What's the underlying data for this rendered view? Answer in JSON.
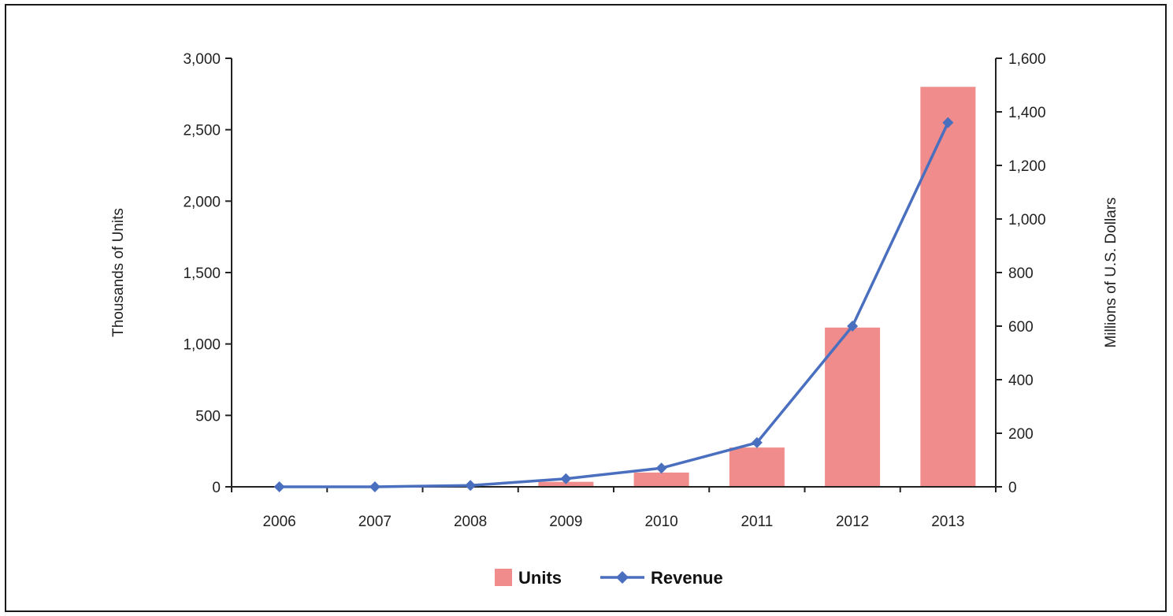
{
  "chart_data": {
    "type": "bar",
    "categories": [
      "2006",
      "2007",
      "2008",
      "2009",
      "2010",
      "2011",
      "2012",
      "2013"
    ],
    "series": [
      {
        "name": "Units",
        "type": "bar",
        "axis": "left",
        "values": [
          0,
          0,
          5,
          35,
          100,
          275,
          1115,
          2800
        ]
      },
      {
        "name": "Revenue",
        "type": "line",
        "axis": "right",
        "values": [
          0,
          0,
          5,
          30,
          70,
          165,
          600,
          1360
        ]
      }
    ],
    "ylabel_left": "Thousands of Units",
    "ylabel_right": "Millions of U.S. Dollars",
    "ylim_left": [
      0,
      3000
    ],
    "ylim_right": [
      0,
      1600
    ],
    "yticks_left": [
      "0",
      "500",
      "1,000",
      "1,500",
      "2,000",
      "2,500",
      "3,000"
    ],
    "yticks_right": [
      "0",
      "200",
      "400",
      "600",
      "800",
      "1,000",
      "1,200",
      "1,400",
      "1,600"
    ],
    "legend_position": "bottom-center",
    "grid": false,
    "colors": {
      "Units": "#f08c8c",
      "Revenue": "#4a6fbf"
    }
  }
}
